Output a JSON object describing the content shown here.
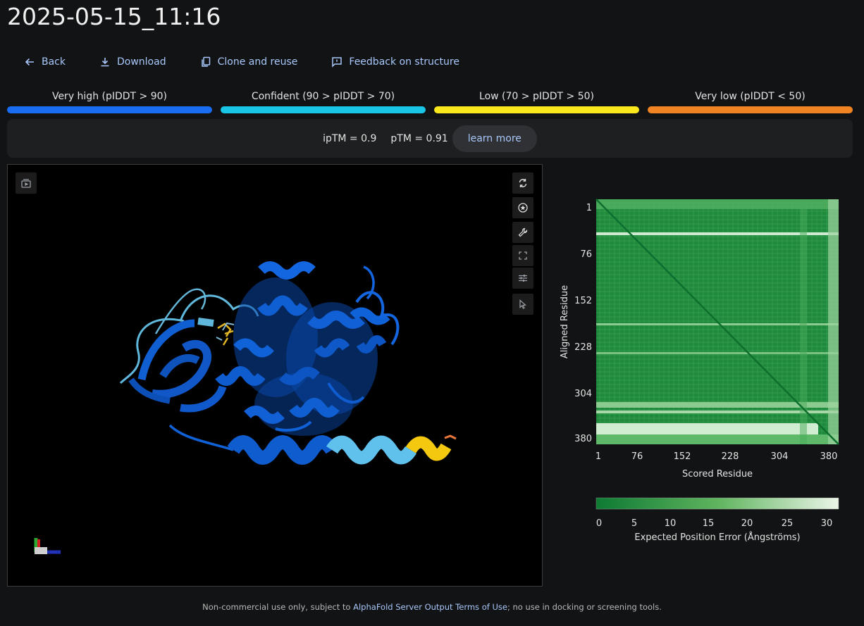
{
  "page": {
    "title": "2025-05-15_11:16"
  },
  "toolbar": {
    "back_label": "Back",
    "download_label": "Download",
    "clone_label": "Clone and reuse",
    "feedback_label": "Feedback on structure"
  },
  "plddt_legend": [
    {
      "label": "Very high (pIDDT > 90)",
      "color": "#1a6cf0"
    },
    {
      "label": "Confident (90 > pIDDT > 70)",
      "color": "#19c6e6"
    },
    {
      "label": "Low (70 > pIDDT > 50)",
      "color": "#fbe81c"
    },
    {
      "label": "Very low (pIDDT < 50)",
      "color": "#f08322"
    }
  ],
  "scores": {
    "iptm": "ipTM = 0.9",
    "ptm": "pTM = 0.91",
    "learn_more_label": "learn more"
  },
  "viewer": {
    "toolbar_icons": [
      "screenshot-icon",
      "spin-icon",
      "focus-icon",
      "wrench-icon",
      "fullscreen-icon",
      "settings-sliders-icon",
      "select-cursor-icon"
    ]
  },
  "pae": {
    "ylabel": "Aligned Residue",
    "xlabel": "Scored Residue",
    "ticks": [
      "1",
      "76",
      "152",
      "228",
      "304",
      "380"
    ],
    "colorbar_ticks": [
      "0",
      "5",
      "10",
      "15",
      "20",
      "25",
      "30"
    ],
    "colorbar_label": "Expected Position Error (Ångströms)",
    "color_low": "#0d7a33",
    "color_high": "#ebf5e8"
  },
  "footer": {
    "prefix": "Non-commercial use only, subject to ",
    "link": "AlphaFold Server Output Terms of Use",
    "suffix": "; no use in docking or screening tools."
  }
}
